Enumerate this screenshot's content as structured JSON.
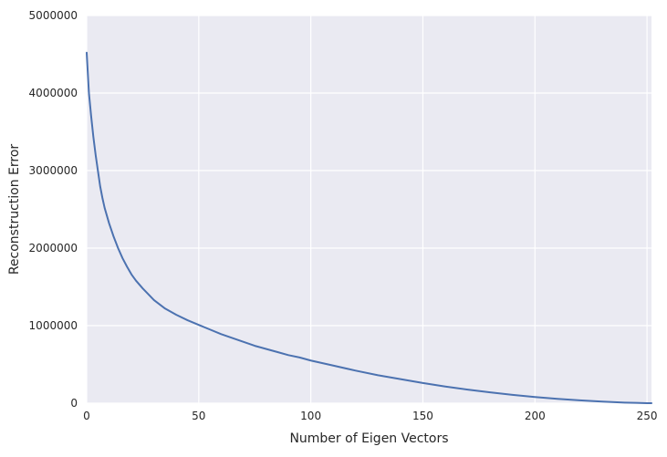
{
  "chart_data": {
    "type": "line",
    "title": "",
    "xlabel": "Number of Eigen Vectors",
    "ylabel": "Reconstruction Error",
    "xlim": [
      0,
      252
    ],
    "ylim": [
      0,
      5000000
    ],
    "xticks": [
      0,
      50,
      100,
      150,
      200,
      250
    ],
    "yticks": [
      0,
      1000000,
      2000000,
      3000000,
      4000000,
      5000000
    ],
    "xtick_labels": [
      "0",
      "50",
      "100",
      "150",
      "200",
      "250"
    ],
    "ytick_labels": [
      "0",
      "1000000",
      "2000000",
      "3000000",
      "4000000",
      "5000000"
    ],
    "grid": true,
    "style": "seaborn-darkgrid",
    "colors": {
      "background": "#EAEAF2",
      "grid": "#FFFFFF",
      "line": "#4C72B0"
    },
    "series": [
      {
        "x": [
          0,
          1,
          2,
          3,
          4,
          5,
          6,
          7,
          8,
          10,
          12,
          14,
          16,
          18,
          20,
          22,
          25,
          28,
          30,
          35,
          40,
          45,
          50,
          55,
          60,
          65,
          70,
          75,
          80,
          85,
          90,
          95,
          100,
          110,
          120,
          130,
          140,
          150,
          160,
          170,
          180,
          190,
          200,
          210,
          220,
          230,
          240,
          245,
          250,
          252
        ],
        "y": [
          4520000,
          4000000,
          3700000,
          3430000,
          3200000,
          3000000,
          2800000,
          2650000,
          2520000,
          2320000,
          2150000,
          2000000,
          1870000,
          1760000,
          1660000,
          1580000,
          1480000,
          1390000,
          1330000,
          1220000,
          1140000,
          1070000,
          1010000,
          950000,
          890000,
          840000,
          790000,
          740000,
          700000,
          660000,
          620000,
          590000,
          550000,
          485000,
          420000,
          360000,
          310000,
          260000,
          215000,
          175000,
          140000,
          108000,
          80000,
          56000,
          37000,
          21000,
          8000,
          4000,
          500,
          0
        ]
      }
    ]
  }
}
